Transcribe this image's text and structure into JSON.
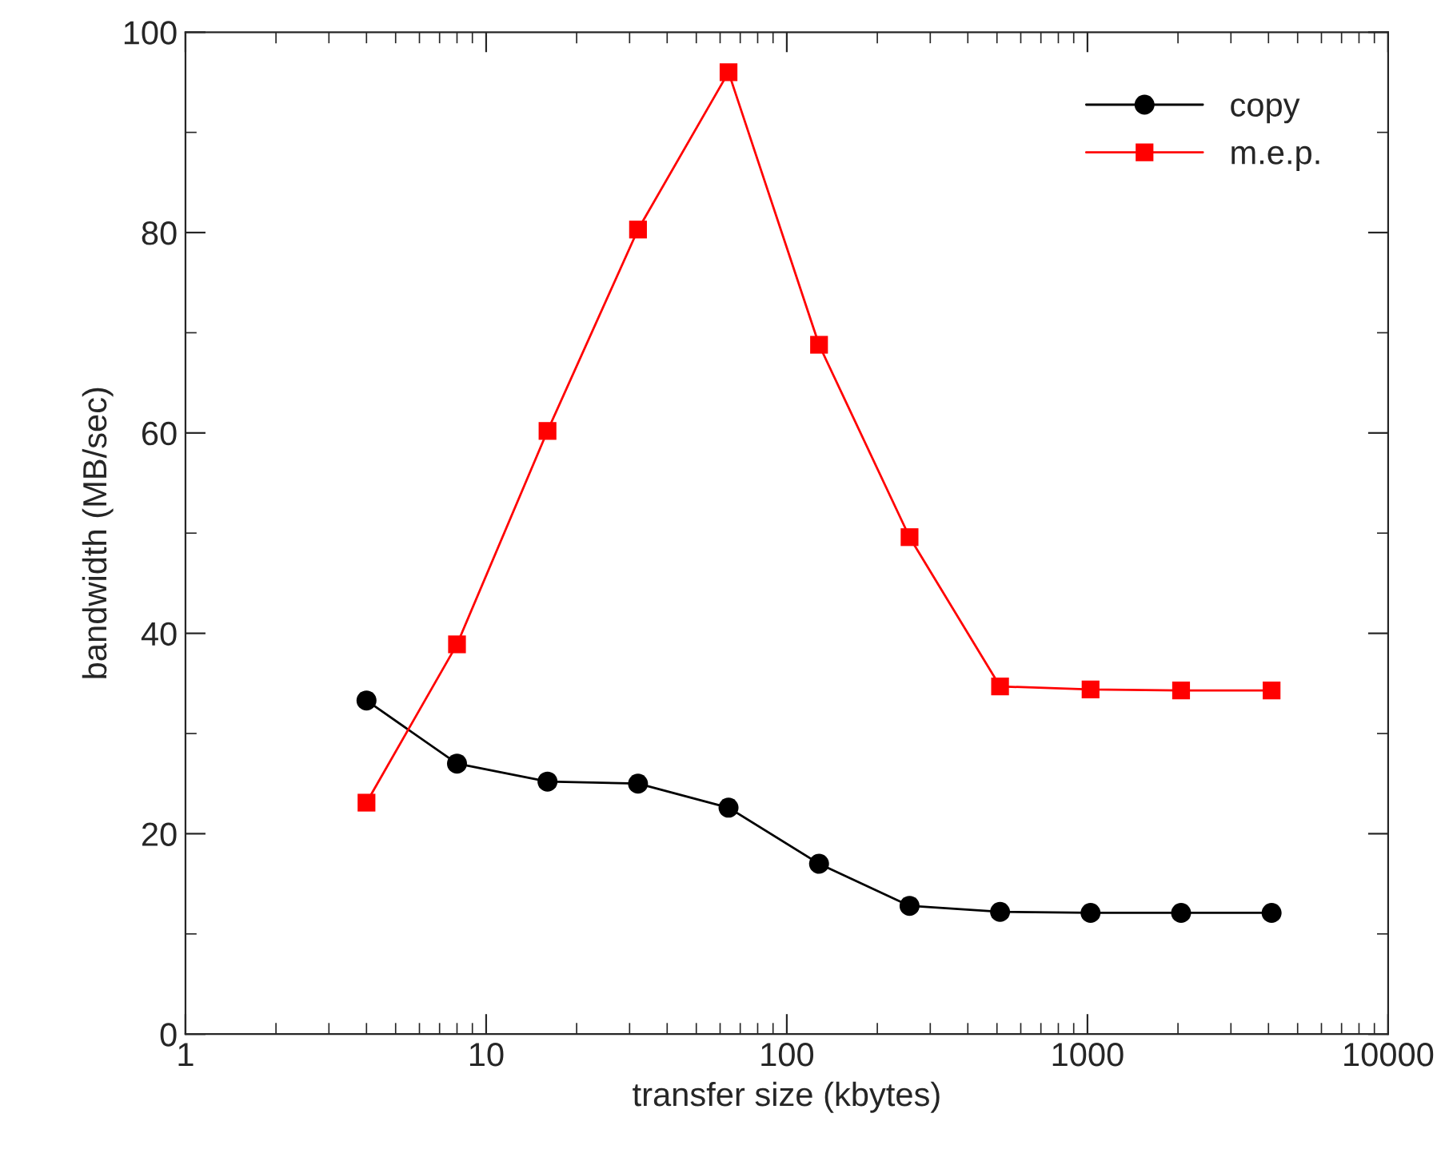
{
  "chart_data": {
    "type": "line",
    "xlabel": "transfer size (kbytes)",
    "ylabel": "bandwidth (MB/sec)",
    "x": [
      4,
      8,
      16,
      32,
      64,
      128,
      256,
      512,
      1024,
      2048,
      4096
    ],
    "series": [
      {
        "name": "copy",
        "color": "#000000",
        "marker": "circle",
        "values": [
          33.3,
          27.0,
          25.2,
          25.0,
          22.6,
          17.0,
          12.8,
          12.2,
          12.1,
          12.1,
          12.1
        ]
      },
      {
        "name": "m.e.p.",
        "color": "#ff0000",
        "marker": "square",
        "values": [
          23.1,
          38.9,
          60.2,
          80.3,
          96.0,
          68.8,
          49.6,
          34.7,
          34.4,
          34.3,
          34.3
        ]
      }
    ],
    "log": "x",
    "xlim": [
      1,
      10000
    ],
    "xticks": [
      1,
      10,
      100,
      1000,
      10000
    ],
    "ylim": [
      0,
      100
    ],
    "yticks": [
      0,
      20,
      40,
      60,
      80,
      100
    ],
    "grid": false,
    "legend": "top right",
    "line_style": "solid"
  }
}
